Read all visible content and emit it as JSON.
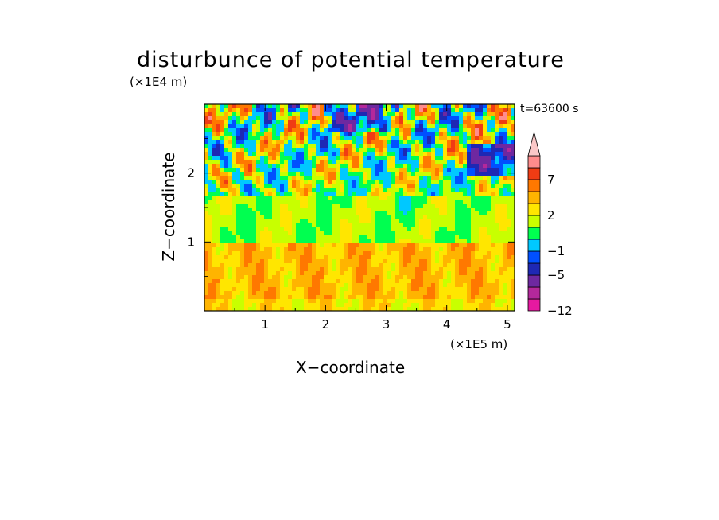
{
  "chart_data": {
    "type": "heatmap",
    "title": "disturbunce of potential temperature",
    "xlabel": "X−coordinate",
    "ylabel": "Z−coordinate",
    "x_unit": "(×1E5 m)",
    "y_unit": "(×1E4 m)",
    "time_label": "t=63600 s",
    "xlim": [
      0,
      5.12
    ],
    "ylim": [
      0,
      3.0
    ],
    "x_ticks": [
      1,
      2,
      3,
      4,
      5
    ],
    "y_ticks": [
      1,
      2
    ],
    "colorbar": {
      "levels": [
        -12,
        -10,
        -7,
        -5,
        -3,
        -1,
        0,
        1,
        2,
        3,
        5,
        7,
        10
      ],
      "tick_labels": [
        {
          "value": 7,
          "text": "7"
        },
        {
          "value": 2,
          "text": "2"
        },
        {
          "value": -1,
          "text": "−1"
        },
        {
          "value": -5,
          "text": "−5"
        },
        {
          "value": -12,
          "text": "−12"
        }
      ],
      "colors": [
        "#e619a0",
        "#b4289b",
        "#6e28a0",
        "#1e28b4",
        "#0050ff",
        "#00c8ff",
        "#00ff50",
        "#c8ff00",
        "#ffe600",
        "#ffb400",
        "#ff7800",
        "#f03c14",
        "#ff8c8c",
        "#fac8c8"
      ],
      "extend": "max"
    },
    "grid": false
  }
}
